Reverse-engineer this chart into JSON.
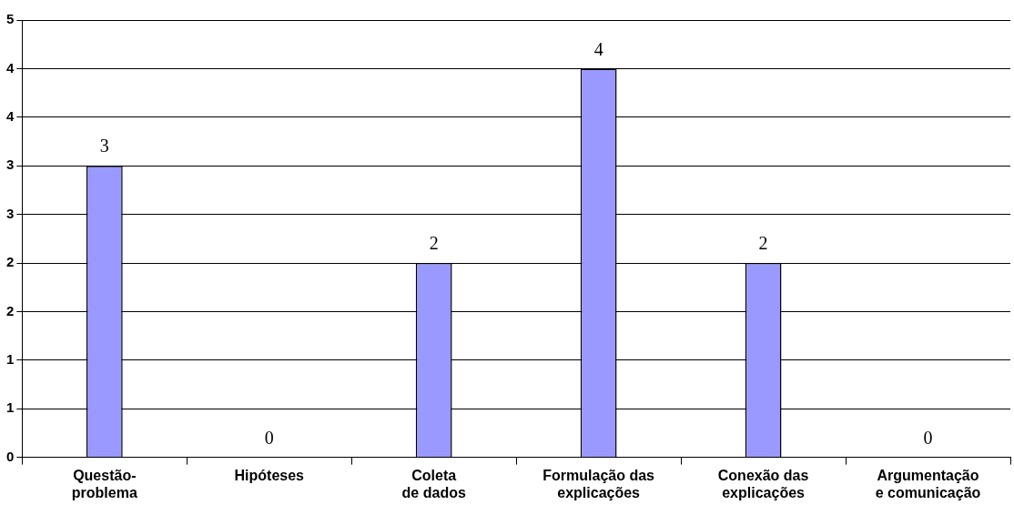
{
  "chart_data": {
    "type": "bar",
    "categories": [
      "Questão-problema",
      "Hipóteses",
      "Coleta de dados",
      "Formulação das explicações",
      "Conexão das explicações",
      "Argumentação e comunicação"
    ],
    "values": [
      3,
      0,
      2,
      4,
      2,
      0
    ],
    "color": "#9999ff",
    "ylim": [
      0,
      4.5
    ],
    "yticks": [
      0,
      {
        "value": 0.5,
        "label": "1"
      },
      1,
      {
        "value": 1.5,
        "label": "2"
      },
      2,
      {
        "value": 2.5,
        "label": "3"
      },
      3,
      {
        "value": 3.5,
        "label": "4"
      },
      4,
      {
        "value": 4.5,
        "label": "5"
      }
    ],
    "grid": "y",
    "data_labels": true
  }
}
